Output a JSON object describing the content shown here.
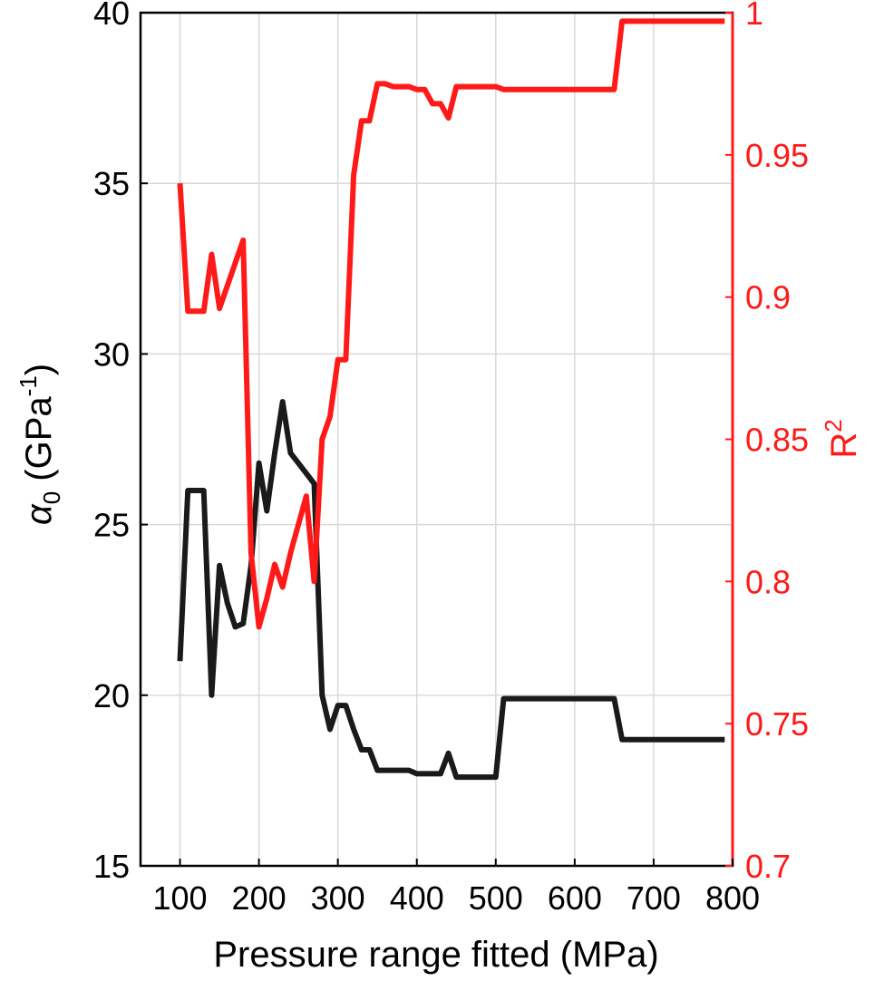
{
  "chart_data": {
    "type": "line",
    "xlabel": "Pressure range fitted (MPa)",
    "xlim": [
      50,
      800
    ],
    "xticks": [
      100,
      200,
      300,
      400,
      500,
      600,
      700,
      800
    ],
    "xtick_labels": [
      "100",
      "200",
      "300",
      "400",
      "500",
      "600",
      "700",
      "800"
    ],
    "ylabel_left": {
      "symbol": "α",
      "subscript": "0",
      "text": " (GPa",
      "superscript": "-1",
      "close": ")"
    },
    "ylim_left": [
      15,
      40
    ],
    "yticks_left": [
      15,
      20,
      25,
      30,
      35,
      40
    ],
    "ytick_labels_left": [
      "15",
      "20",
      "25",
      "30",
      "35",
      "40"
    ],
    "ylabel_right": {
      "text": "R",
      "superscript": "2"
    },
    "ylim_right": [
      0.7,
      1.0
    ],
    "yticks_right": [
      0.7,
      0.75,
      0.8,
      0.85,
      0.9,
      0.95,
      1.0
    ],
    "ytick_labels_right": [
      "0.7",
      "0.75",
      "0.8",
      "0.85",
      "0.9",
      "0.95",
      "1"
    ],
    "grid": true,
    "colors": {
      "alpha": "#1a1a1a",
      "r2": "#ff1a1a",
      "axis_left": "#000000",
      "axis_right": "#ff1a1a"
    },
    "series": [
      {
        "axis": "left",
        "x": [
          100,
          110,
          120,
          130,
          140,
          150,
          160,
          170,
          180,
          190,
          200,
          210,
          220,
          230,
          240,
          250,
          260,
          270,
          280,
          290,
          300,
          310,
          320,
          330,
          340,
          350,
          360,
          370,
          380,
          390,
          400,
          410,
          420,
          430,
          440,
          450,
          460,
          470,
          480,
          490,
          500,
          510,
          520,
          560,
          600,
          650,
          660,
          670,
          700,
          750,
          790
        ],
        "y": [
          21.0,
          26.0,
          26.0,
          26.0,
          20.0,
          23.8,
          22.7,
          22.0,
          22.1,
          23.8,
          26.8,
          25.4,
          27.1,
          28.6,
          27.1,
          26.8,
          26.5,
          26.2,
          20.0,
          19.0,
          19.7,
          19.7,
          19.0,
          18.4,
          18.4,
          17.8,
          17.8,
          17.8,
          17.8,
          17.8,
          17.7,
          17.7,
          17.7,
          17.7,
          18.3,
          17.6,
          17.6,
          17.6,
          17.6,
          17.6,
          17.6,
          19.9,
          19.9,
          19.9,
          19.9,
          19.9,
          18.7,
          18.7,
          18.7,
          18.7,
          18.7
        ]
      },
      {
        "axis": "right",
        "x": [
          100,
          110,
          120,
          130,
          140,
          150,
          160,
          170,
          180,
          190,
          200,
          210,
          220,
          230,
          240,
          250,
          260,
          270,
          280,
          290,
          300,
          310,
          320,
          330,
          340,
          350,
          360,
          370,
          380,
          390,
          400,
          410,
          420,
          430,
          440,
          450,
          460,
          470,
          480,
          490,
          500,
          510,
          550,
          600,
          650,
          660,
          700,
          750,
          790
        ],
        "y": [
          0.94,
          0.895,
          0.895,
          0.895,
          0.915,
          0.896,
          0.904,
          0.912,
          0.92,
          0.81,
          0.784,
          0.794,
          0.806,
          0.798,
          0.81,
          0.82,
          0.83,
          0.8,
          0.85,
          0.858,
          0.878,
          0.878,
          0.943,
          0.962,
          0.962,
          0.975,
          0.975,
          0.974,
          0.974,
          0.974,
          0.973,
          0.973,
          0.968,
          0.968,
          0.963,
          0.974,
          0.974,
          0.974,
          0.974,
          0.974,
          0.974,
          0.973,
          0.973,
          0.973,
          0.973,
          0.997,
          0.997,
          0.997,
          0.997
        ]
      }
    ]
  }
}
